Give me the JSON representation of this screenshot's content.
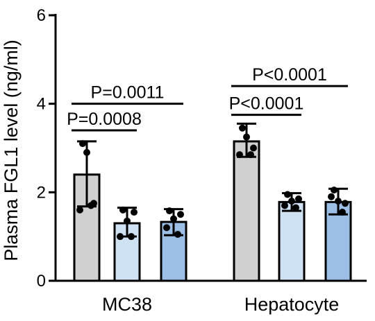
{
  "chart_data": {
    "type": "bar",
    "ylabel": "Plasma FGL1 level (ng/ml)",
    "ylim": [
      0,
      6
    ],
    "yticks": [
      0,
      2,
      4,
      6
    ],
    "groups": [
      {
        "label": "MC38",
        "bars": [
          {
            "value": 2.4,
            "err_low": 1.68,
            "err_high": 3.15,
            "color": "#d0d0d0",
            "points": [
              3.1,
              2.9,
              1.7,
              1.6,
              1.75
            ]
          },
          {
            "value": 1.3,
            "err_low": 1.0,
            "err_high": 1.65,
            "color": "#cfe2f3",
            "points": [
              1.6,
              1.35,
              1.0,
              1.0,
              1.55
            ]
          },
          {
            "value": 1.33,
            "err_low": 1.03,
            "err_high": 1.62,
            "color": "#9dbfe6",
            "points": [
              1.58,
              1.4,
              1.05,
              1.2,
              1.5
            ]
          }
        ]
      },
      {
        "label": "Hepatocyte",
        "bars": [
          {
            "value": 3.15,
            "err_low": 2.8,
            "err_high": 3.55,
            "color": "#d0d0d0",
            "points": [
              3.45,
              3.25,
              2.85,
              2.85,
              3.0
            ]
          },
          {
            "value": 1.78,
            "err_low": 1.58,
            "err_high": 1.98,
            "color": "#cfe2f3",
            "points": [
              1.95,
              1.8,
              1.65,
              1.7,
              1.85
            ]
          },
          {
            "value": 1.78,
            "err_low": 1.5,
            "err_high": 2.08,
            "color": "#9dbfe6",
            "points": [
              2.05,
              1.8,
              1.55,
              1.9,
              1.75
            ]
          }
        ]
      }
    ],
    "comparisons": [
      {
        "group": 0,
        "from_bar": 0,
        "to_bar": 1,
        "y": 3.4,
        "label": "P=0.0008"
      },
      {
        "group": 0,
        "from_bar": 0,
        "to_bar": 2,
        "y": 4.0,
        "label": "P=0.0011"
      },
      {
        "group": 1,
        "from_bar": 0,
        "to_bar": 1,
        "y": 3.75,
        "label": "P<0.0001"
      },
      {
        "group": 1,
        "from_bar": 0,
        "to_bar": 2,
        "y": 4.4,
        "label": "P<0.0001"
      }
    ]
  }
}
